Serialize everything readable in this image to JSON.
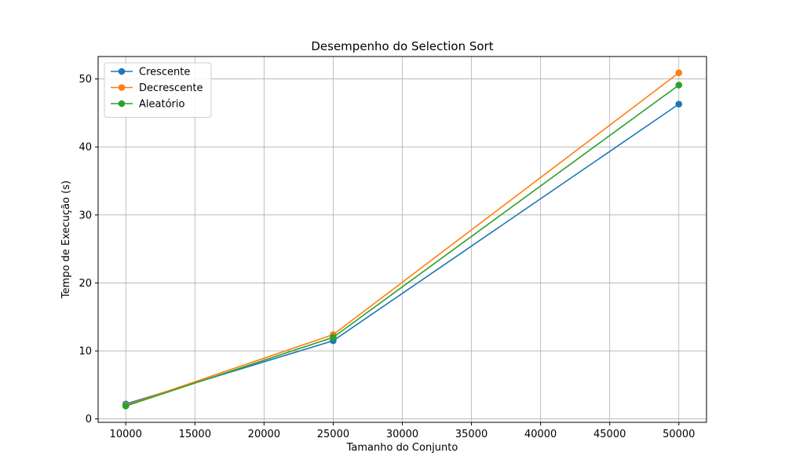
{
  "colors": {
    "background": "#ffffff",
    "grid": "#b0b0b0",
    "axis": "#000000",
    "legend_border": "#cccccc"
  },
  "chart_data": {
    "type": "line",
    "title": "Desempenho do Selection Sort",
    "xlabel": "Tamanho do Conjunto",
    "ylabel": "Tempo de Execução (s)",
    "x": [
      10000,
      25000,
      50000
    ],
    "xlim": [
      8000,
      52000
    ],
    "ylim": [
      -0.5,
      53.3
    ],
    "xticks": [
      10000,
      15000,
      20000,
      25000,
      30000,
      35000,
      40000,
      45000,
      50000
    ],
    "yticks": [
      0,
      10,
      20,
      30,
      40,
      50
    ],
    "grid": true,
    "legend_position": "top-left",
    "marker": "circle",
    "series": [
      {
        "name": "Crescente",
        "values": [
          2.2,
          11.5,
          46.3
        ],
        "color": "#1f77b4"
      },
      {
        "name": "Decrescente",
        "values": [
          2.0,
          12.4,
          50.9
        ],
        "color": "#ff7f0e"
      },
      {
        "name": "Aleatório",
        "values": [
          1.9,
          12.0,
          49.1
        ],
        "color": "#2ca02c"
      }
    ]
  }
}
